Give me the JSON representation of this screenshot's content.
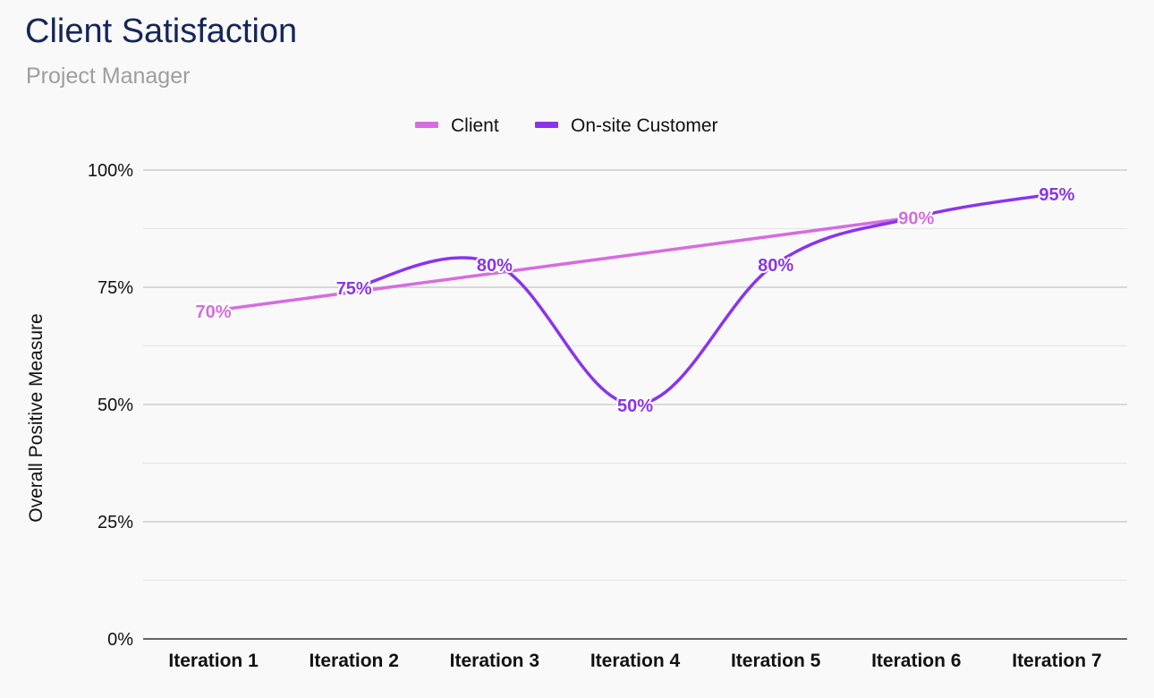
{
  "chart_data": {
    "type": "line",
    "title": "Client Satisfaction",
    "subtitle": "Project Manager",
    "xlabel": "",
    "ylabel": "Overall Positive Measure",
    "categories": [
      "Iteration 1",
      "Iteration 2",
      "Iteration 3",
      "Iteration 4",
      "Iteration 5",
      "Iteration 6",
      "Iteration 7"
    ],
    "ylim": [
      0,
      100
    ],
    "yticks": [
      "0%",
      "25%",
      "50%",
      "75%",
      "100%"
    ],
    "grid": true,
    "legend_position": "top-center",
    "series": [
      {
        "name": "Client",
        "color": "#d66ce0",
        "curve": "straight",
        "values": [
          70,
          null,
          null,
          null,
          null,
          90,
          null
        ],
        "data_labels": [
          "70%",
          null,
          null,
          null,
          null,
          "90%",
          null
        ]
      },
      {
        "name": "On-site Customer",
        "color": "#8a34ec",
        "curve": "smooth",
        "values": [
          null,
          75,
          80,
          50,
          80,
          90,
          95
        ],
        "data_labels": [
          null,
          "75%",
          "80%",
          "50%",
          "80%",
          null,
          "95%"
        ]
      }
    ]
  }
}
